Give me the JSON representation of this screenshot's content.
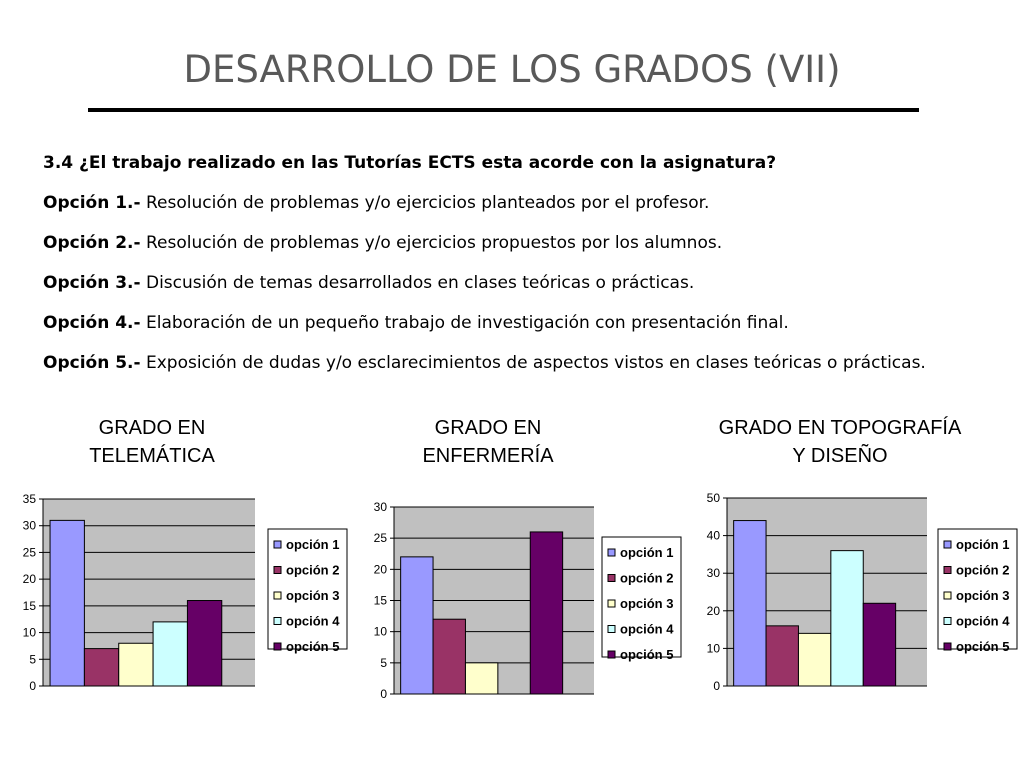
{
  "slide": {
    "title": "DESARROLLO DE LOS GRADOS (VII)",
    "question": "3.4 ¿El trabajo realizado en las Tutorías ECTS esta acorde con la asignatura?",
    "options": [
      {
        "label": "Opción 1.-",
        "text": " Resolución de problemas y/o ejercicios planteados por el profesor."
      },
      {
        "label": "Opción 2.-",
        "text": " Resolución de problemas y/o ejercicios propuestos por los alumnos."
      },
      {
        "label": "Opción 3.-",
        "text": "  Discusión de temas desarrollados en clases teóricas o prácticas."
      },
      {
        "label": "Opción 4.-",
        "text": "  Elaboración de un pequeño trabajo de investigación con presentación final."
      },
      {
        "label": "Opción 5.-",
        "text": "  Exposición de dudas y/o esclarecimientos de aspectos vistos en clases teóricas o prácticas."
      }
    ]
  },
  "chart_data": [
    {
      "type": "bar",
      "title": "GRADO EN\nTELEMÁTICA",
      "categories": [
        "opción 1",
        "opción 2",
        "opción 3",
        "opción 4",
        "opción 5"
      ],
      "values": [
        31,
        7,
        8,
        12,
        16
      ],
      "ylim": [
        0,
        35
      ],
      "yticks": [
        0,
        5,
        10,
        15,
        20,
        25,
        30,
        35
      ],
      "grid": true,
      "legend": "right",
      "colors": [
        "#9999ff",
        "#993366",
        "#ffffcc",
        "#ccffff",
        "#660066"
      ]
    },
    {
      "type": "bar",
      "title": "GRADO EN\nENFERMERÍA",
      "categories": [
        "opción 1",
        "opción 2",
        "opción 3",
        "opción 4",
        "opción 5"
      ],
      "values": [
        22,
        12,
        5,
        0,
        26
      ],
      "ylim": [
        0,
        30
      ],
      "yticks": [
        0,
        5,
        10,
        15,
        20,
        25,
        30
      ],
      "grid": true,
      "legend": "right",
      "colors": [
        "#9999ff",
        "#993366",
        "#ffffcc",
        "#ccffff",
        "#660066"
      ]
    },
    {
      "type": "bar",
      "title": "GRADO EN TOPOGRAFÍA\nY DISEÑO",
      "categories": [
        "opción 1",
        "opción 2",
        "opción 3",
        "opción 4",
        "opción 5"
      ],
      "values": [
        44,
        16,
        14,
        36,
        22
      ],
      "ylim": [
        0,
        50
      ],
      "yticks": [
        0,
        10,
        20,
        30,
        40,
        50
      ],
      "grid": true,
      "legend": "right",
      "colors": [
        "#9999ff",
        "#993366",
        "#ffffcc",
        "#ccffff",
        "#660066"
      ]
    }
  ]
}
